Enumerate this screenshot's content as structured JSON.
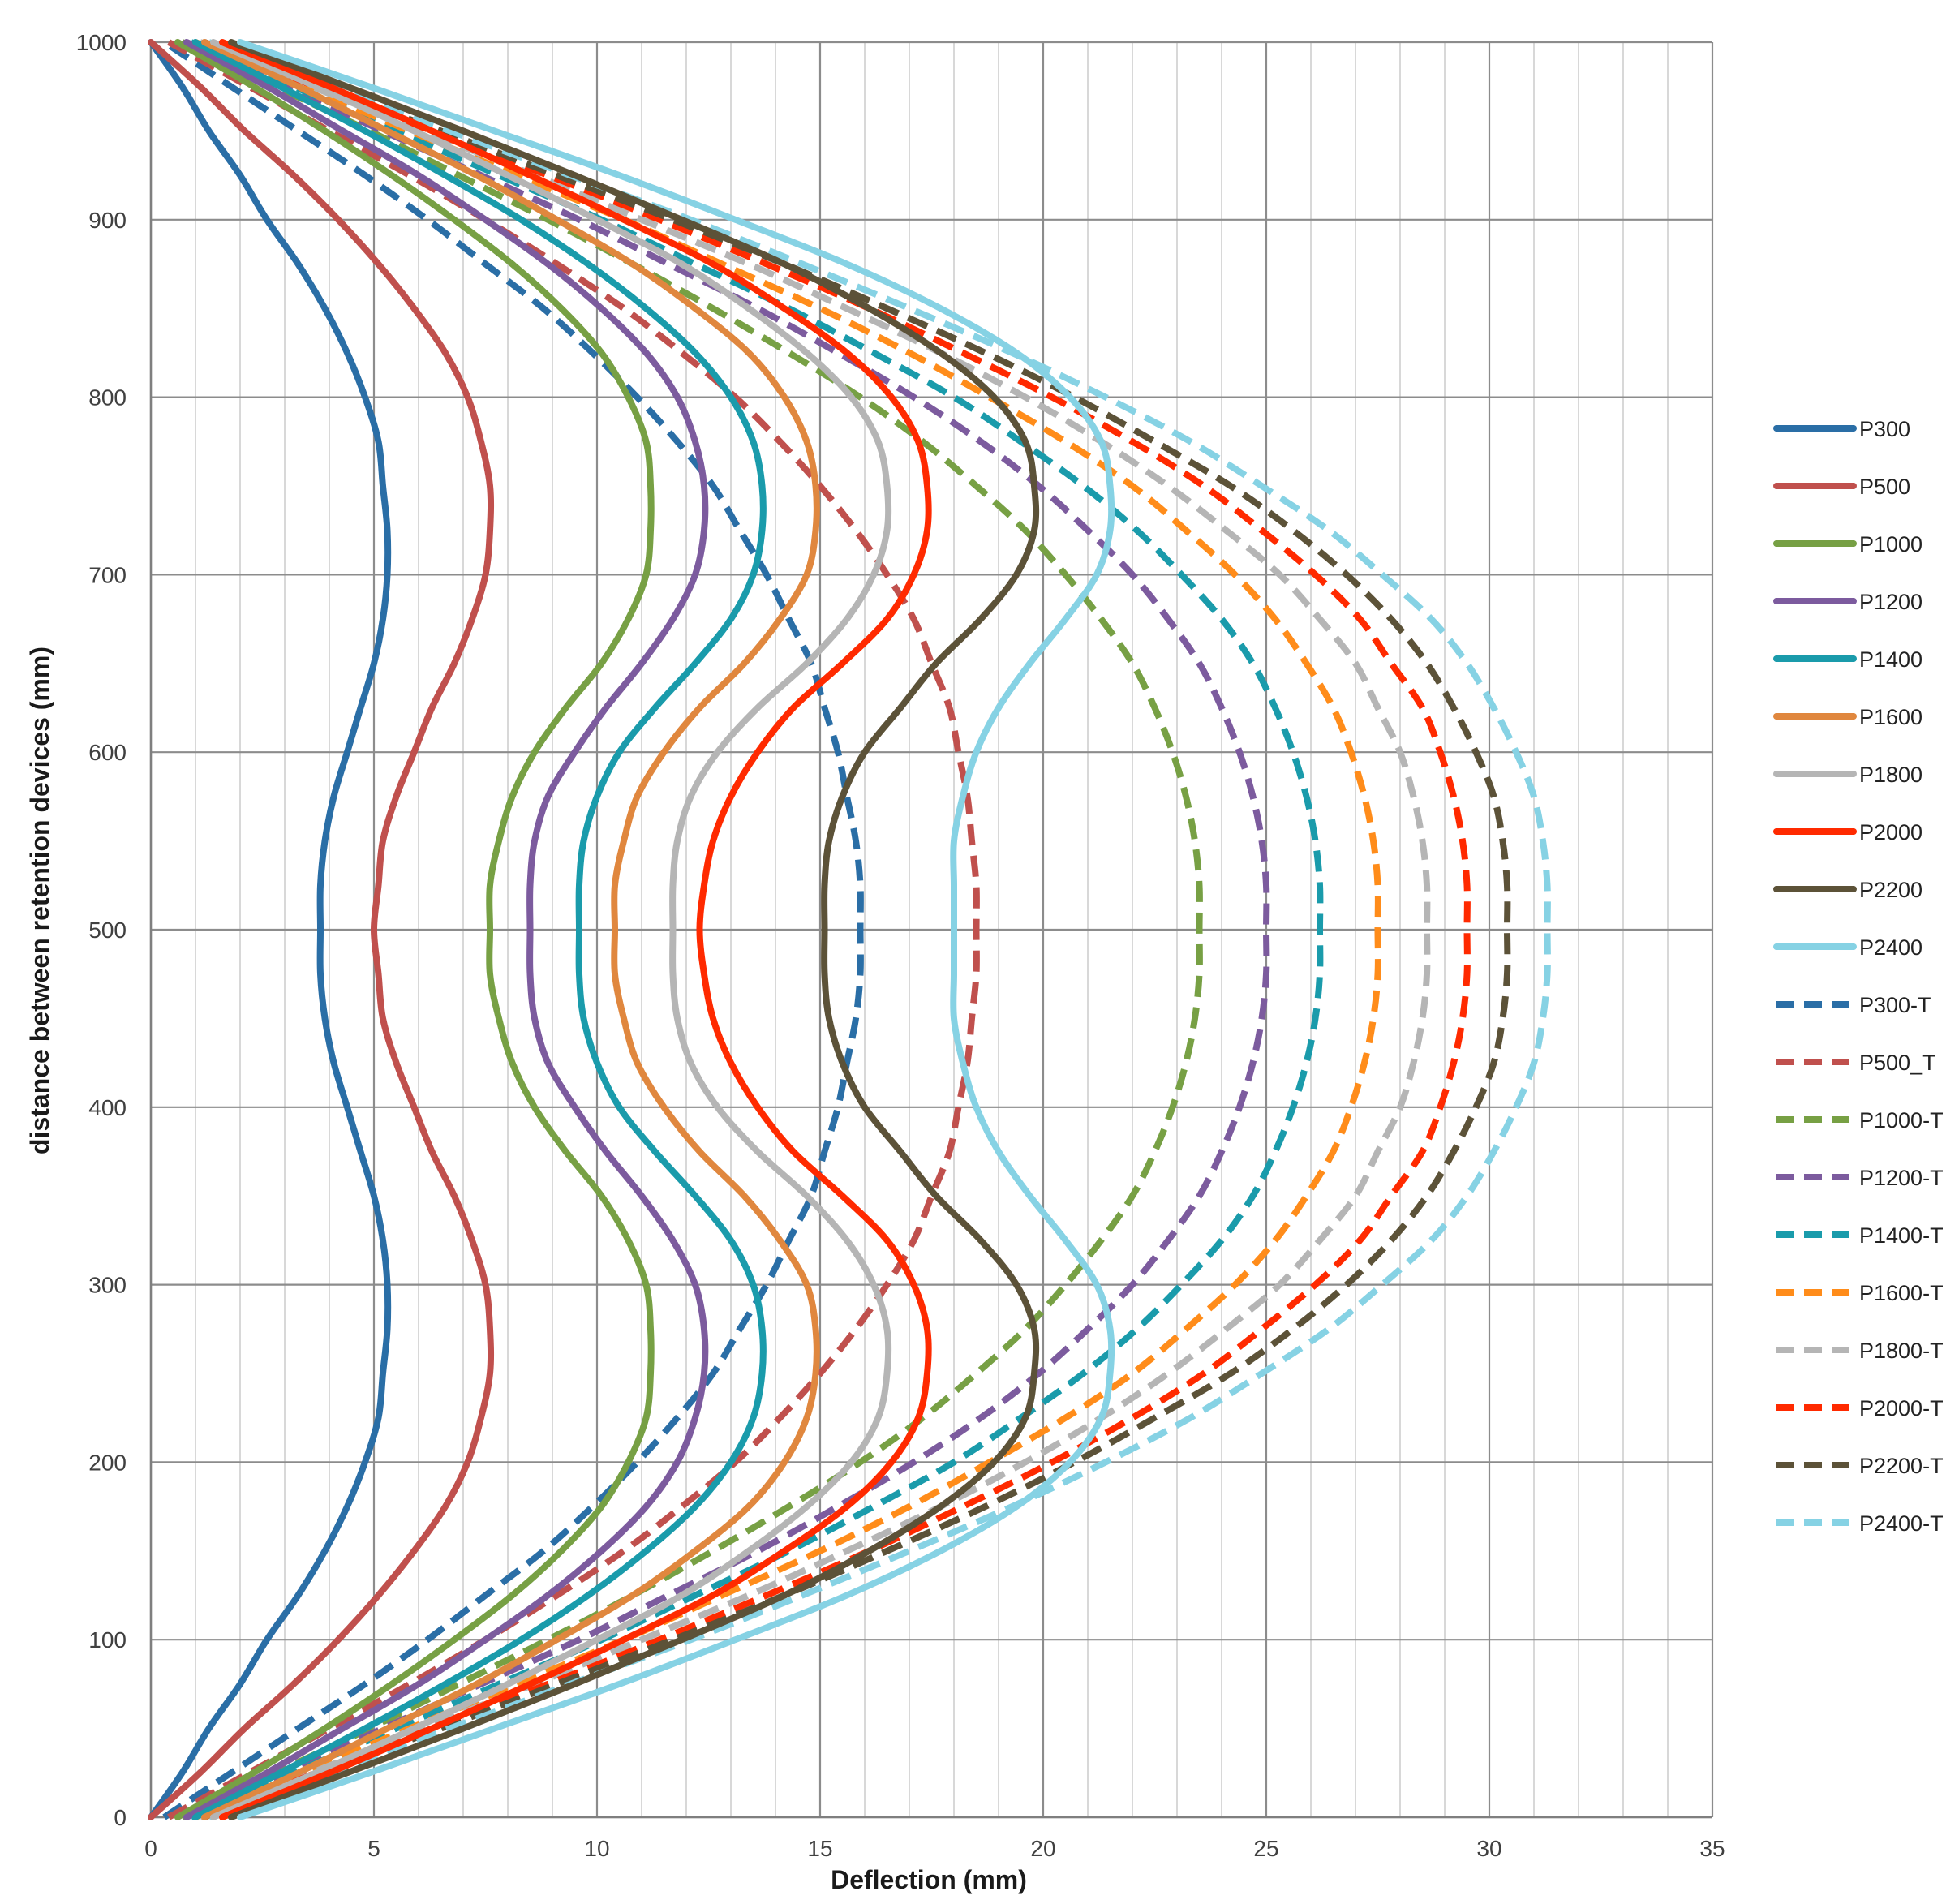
{
  "chart_data": {
    "type": "line",
    "xlabel": "Deflection (mm)",
    "ylabel": "distance between retention devices (mm)",
    "xlim": [
      0,
      35
    ],
    "ylim": [
      0,
      1000
    ],
    "x_ticks": [
      "0",
      "5",
      "10",
      "15",
      "20",
      "25",
      "30",
      "35"
    ],
    "y_ticks": [
      "0",
      "100",
      "200",
      "300",
      "400",
      "500",
      "600",
      "700",
      "800",
      "900",
      "1000"
    ],
    "grid": true,
    "legend_position": "right",
    "y": [
      0,
      25,
      50,
      75,
      100,
      125,
      150,
      175,
      200,
      225,
      250,
      275,
      300,
      325,
      350,
      375,
      400,
      425,
      450,
      475,
      500,
      525,
      550,
      575,
      600,
      625,
      650,
      675,
      700,
      725,
      750,
      775,
      800,
      825,
      850,
      875,
      900,
      925,
      950,
      975,
      1000
    ],
    "series": [
      {
        "name": "P300",
        "color": "#2a6ea6",
        "dash": false,
        "x": [
          0.0,
          0.7,
          1.3,
          2.0,
          2.6,
          3.3,
          3.9,
          4.4,
          4.8,
          5.1,
          5.2,
          5.3,
          5.3,
          5.2,
          5.0,
          4.7,
          4.4,
          4.1,
          3.9,
          3.8,
          3.8,
          3.8,
          3.9,
          4.1,
          4.4,
          4.7,
          5.0,
          5.2,
          5.3,
          5.3,
          5.2,
          5.1,
          4.8,
          4.4,
          3.9,
          3.3,
          2.6,
          2.0,
          1.3,
          0.7,
          0.0
        ]
      },
      {
        "name": "P500",
        "color": "#c0504d",
        "dash": false,
        "x": [
          0.0,
          1.1,
          2.1,
          3.2,
          4.2,
          5.1,
          5.9,
          6.6,
          7.1,
          7.4,
          7.6,
          7.6,
          7.5,
          7.2,
          6.8,
          6.3,
          5.9,
          5.5,
          5.2,
          5.1,
          5.0,
          5.1,
          5.2,
          5.5,
          5.9,
          6.3,
          6.8,
          7.2,
          7.5,
          7.6,
          7.6,
          7.4,
          7.1,
          6.6,
          5.9,
          5.1,
          4.2,
          3.2,
          2.1,
          1.1,
          0.0
        ]
      },
      {
        "name": "P1000",
        "color": "#77a044",
        "dash": false,
        "x": [
          0.6,
          2.3,
          3.9,
          5.4,
          6.8,
          8.1,
          9.2,
          10.1,
          10.7,
          11.1,
          11.2,
          11.2,
          11.1,
          10.7,
          10.1,
          9.3,
          8.6,
          8.1,
          7.8,
          7.6,
          7.6,
          7.6,
          7.8,
          8.1,
          8.6,
          9.3,
          10.1,
          10.7,
          11.1,
          11.2,
          11.2,
          11.1,
          10.7,
          10.1,
          9.2,
          8.1,
          6.8,
          5.4,
          3.9,
          2.3,
          0.6
        ]
      },
      {
        "name": "P1200",
        "color": "#7c5b9e",
        "dash": false,
        "x": [
          0.8,
          2.6,
          4.3,
          6.0,
          7.5,
          8.9,
          10.1,
          11.1,
          11.8,
          12.2,
          12.4,
          12.4,
          12.2,
          11.7,
          11.0,
          10.2,
          9.5,
          8.9,
          8.6,
          8.5,
          8.5,
          8.5,
          8.6,
          8.9,
          9.5,
          10.2,
          11.0,
          11.7,
          12.2,
          12.4,
          12.4,
          12.2,
          11.8,
          11.1,
          10.1,
          8.9,
          7.5,
          6.0,
          4.3,
          2.6,
          0.8
        ]
      },
      {
        "name": "P1400",
        "color": "#1a9bab",
        "dash": false,
        "x": [
          1.0,
          2.9,
          4.8,
          6.6,
          8.3,
          9.8,
          11.1,
          12.2,
          13.0,
          13.5,
          13.7,
          13.7,
          13.5,
          13.0,
          12.2,
          11.3,
          10.5,
          10.0,
          9.7,
          9.6,
          9.6,
          9.6,
          9.7,
          10.0,
          10.5,
          11.3,
          12.2,
          13.0,
          13.5,
          13.7,
          13.7,
          13.5,
          13.0,
          12.2,
          11.1,
          9.8,
          8.3,
          6.6,
          4.8,
          2.9,
          1.0
        ]
      },
      {
        "name": "P1600",
        "color": "#e0873e",
        "dash": false,
        "x": [
          1.2,
          3.3,
          5.3,
          7.3,
          9.1,
          10.8,
          12.2,
          13.4,
          14.2,
          14.7,
          14.9,
          14.9,
          14.7,
          14.1,
          13.3,
          12.3,
          11.5,
          10.9,
          10.6,
          10.4,
          10.4,
          10.4,
          10.6,
          10.9,
          11.5,
          12.3,
          13.3,
          14.1,
          14.7,
          14.9,
          14.9,
          14.7,
          14.2,
          13.4,
          12.2,
          10.8,
          9.1,
          7.3,
          5.3,
          3.3,
          1.2
        ]
      },
      {
        "name": "P1800",
        "color": "#b5b5b5",
        "dash": false,
        "x": [
          1.4,
          3.7,
          5.9,
          8.0,
          10.0,
          11.9,
          13.4,
          14.7,
          15.7,
          16.3,
          16.5,
          16.5,
          16.2,
          15.6,
          14.7,
          13.6,
          12.7,
          12.1,
          11.8,
          11.7,
          11.7,
          11.7,
          11.8,
          12.1,
          12.7,
          13.6,
          14.7,
          15.6,
          16.2,
          16.5,
          16.5,
          16.3,
          15.7,
          14.7,
          13.4,
          11.9,
          10.0,
          8.0,
          5.9,
          3.7,
          1.4
        ]
      },
      {
        "name": "P2000",
        "color": "#ff2a00",
        "dash": false,
        "x": [
          1.6,
          4.0,
          6.3,
          8.5,
          10.6,
          12.6,
          14.2,
          15.6,
          16.6,
          17.2,
          17.4,
          17.4,
          17.1,
          16.5,
          15.5,
          14.4,
          13.6,
          13.0,
          12.6,
          12.4,
          12.3,
          12.4,
          12.6,
          13.0,
          13.6,
          14.4,
          15.5,
          16.5,
          17.1,
          17.4,
          17.4,
          17.2,
          16.6,
          15.6,
          14.2,
          12.6,
          10.6,
          8.5,
          6.3,
          4.0,
          1.6
        ]
      },
      {
        "name": "P2200",
        "color": "#5c5238",
        "dash": false,
        "x": [
          1.8,
          4.4,
          7.0,
          9.5,
          11.9,
          14.2,
          16.1,
          17.7,
          18.9,
          19.6,
          19.8,
          19.8,
          19.4,
          18.6,
          17.6,
          16.8,
          16.0,
          15.5,
          15.2,
          15.1,
          15.1,
          15.1,
          15.2,
          15.5,
          16.0,
          16.8,
          17.6,
          18.6,
          19.4,
          19.8,
          19.8,
          19.6,
          18.9,
          17.7,
          16.1,
          14.2,
          11.9,
          9.5,
          7.0,
          4.4,
          1.8
        ]
      },
      {
        "name": "P2400",
        "color": "#86d2e4",
        "dash": false,
        "x": [
          2.0,
          4.9,
          7.7,
          10.5,
          13.1,
          15.6,
          17.7,
          19.4,
          20.6,
          21.3,
          21.5,
          21.5,
          21.2,
          20.5,
          19.7,
          19.0,
          18.5,
          18.2,
          18.0,
          18.0,
          18.0,
          18.0,
          18.0,
          18.2,
          18.5,
          19.0,
          19.7,
          20.5,
          21.2,
          21.5,
          21.5,
          21.3,
          20.6,
          19.4,
          17.7,
          15.6,
          13.1,
          10.5,
          7.7,
          4.9,
          2.0
        ]
      },
      {
        "name": "P300-T",
        "color": "#2a6ea6",
        "dash": true,
        "x": [
          0.3,
          1.8,
          3.3,
          4.8,
          6.2,
          7.5,
          8.8,
          9.9,
          10.9,
          11.8,
          12.6,
          13.2,
          13.8,
          14.3,
          14.8,
          15.1,
          15.4,
          15.6,
          15.8,
          15.9,
          15.9,
          15.9,
          15.8,
          15.6,
          15.4,
          15.1,
          14.8,
          14.3,
          13.8,
          13.2,
          12.6,
          11.8,
          10.9,
          9.9,
          8.8,
          7.5,
          6.2,
          4.8,
          3.3,
          1.8,
          0.3
        ]
      },
      {
        "name": "P500_T",
        "color": "#c0504d",
        "dash": true,
        "x": [
          0.4,
          2.2,
          4.0,
          5.8,
          7.5,
          9.1,
          10.6,
          11.9,
          13.1,
          14.1,
          15.0,
          15.8,
          16.5,
          17.1,
          17.5,
          17.9,
          18.1,
          18.3,
          18.4,
          18.5,
          18.5,
          18.5,
          18.4,
          18.3,
          18.1,
          17.9,
          17.5,
          17.1,
          16.5,
          15.8,
          15.0,
          14.1,
          13.1,
          11.9,
          10.6,
          9.1,
          7.5,
          5.8,
          4.0,
          2.2,
          0.4
        ]
      },
      {
        "name": "P1000-T",
        "color": "#77a044",
        "dash": true,
        "x": [
          0.7,
          2.8,
          4.9,
          6.9,
          8.9,
          10.8,
          12.6,
          14.3,
          15.9,
          17.3,
          18.5,
          19.6,
          20.5,
          21.3,
          22.0,
          22.5,
          22.9,
          23.2,
          23.4,
          23.5,
          23.5,
          23.5,
          23.4,
          23.2,
          22.9,
          22.5,
          22.0,
          21.3,
          20.5,
          19.6,
          18.5,
          17.3,
          15.9,
          14.3,
          12.6,
          10.8,
          8.9,
          6.9,
          4.9,
          2.8,
          0.7
        ]
      },
      {
        "name": "P1200-T",
        "color": "#7c5b9e",
        "dash": true,
        "x": [
          0.8,
          3.0,
          5.2,
          7.4,
          9.6,
          11.6,
          13.6,
          15.4,
          17.1,
          18.6,
          19.9,
          21.0,
          22.0,
          22.8,
          23.5,
          24.0,
          24.4,
          24.7,
          24.9,
          25.0,
          25.0,
          25.0,
          24.9,
          24.7,
          24.4,
          24.0,
          23.5,
          22.8,
          22.0,
          21.0,
          19.9,
          18.6,
          17.1,
          15.4,
          13.6,
          11.6,
          9.6,
          7.4,
          5.2,
          3.0,
          0.8
        ]
      },
      {
        "name": "P1400-T",
        "color": "#1a9bab",
        "dash": true,
        "x": [
          0.9,
          3.2,
          5.5,
          7.8,
          10.1,
          12.2,
          14.3,
          16.2,
          18.0,
          19.5,
          20.9,
          22.1,
          23.1,
          24.0,
          24.7,
          25.2,
          25.6,
          25.9,
          26.1,
          26.2,
          26.2,
          26.2,
          26.1,
          25.9,
          25.6,
          25.2,
          24.7,
          24.0,
          23.1,
          22.1,
          20.9,
          19.5,
          18.0,
          16.2,
          14.3,
          12.2,
          10.1,
          7.8,
          5.5,
          3.2,
          0.9
        ]
      },
      {
        "name": "P1600-T",
        "color": "#ff8c1a",
        "dash": true,
        "x": [
          1.0,
          3.4,
          5.8,
          8.2,
          10.6,
          12.8,
          15.0,
          17.0,
          18.8,
          20.5,
          22.0,
          23.2,
          24.3,
          25.2,
          25.9,
          26.5,
          26.9,
          27.2,
          27.4,
          27.5,
          27.5,
          27.5,
          27.4,
          27.2,
          26.9,
          26.5,
          25.9,
          25.2,
          24.3,
          23.2,
          22.0,
          20.5,
          18.8,
          17.0,
          15.0,
          12.8,
          10.6,
          8.2,
          5.8,
          3.4,
          1.0
        ]
      },
      {
        "name": "P1800-T",
        "color": "#b5b5b5",
        "dash": true,
        "x": [
          1.1,
          3.6,
          6.1,
          8.6,
          11.0,
          13.4,
          15.6,
          17.7,
          19.6,
          21.3,
          22.8,
          24.1,
          25.3,
          26.2,
          27.0,
          27.5,
          28.0,
          28.3,
          28.5,
          28.6,
          28.6,
          28.6,
          28.5,
          28.3,
          28.0,
          27.5,
          27.0,
          26.2,
          25.3,
          24.1,
          22.8,
          21.3,
          19.6,
          17.7,
          15.6,
          13.4,
          11.0,
          8.6,
          6.1,
          3.6,
          1.1
        ]
      },
      {
        "name": "P2000-T",
        "color": "#ff2a00",
        "dash": true,
        "x": [
          1.2,
          3.7,
          6.3,
          8.9,
          11.4,
          13.8,
          16.1,
          18.2,
          20.2,
          22.0,
          23.6,
          24.9,
          26.1,
          27.1,
          27.8,
          28.5,
          28.9,
          29.2,
          29.4,
          29.5,
          29.5,
          29.5,
          29.4,
          29.2,
          28.9,
          28.5,
          27.8,
          27.1,
          26.1,
          24.9,
          23.6,
          22.0,
          20.2,
          18.2,
          16.1,
          13.8,
          11.4,
          8.9,
          6.3,
          3.7,
          1.2
        ]
      },
      {
        "name": "P2200-T",
        "color": "#5c5238",
        "dash": true,
        "x": [
          1.2,
          3.8,
          6.5,
          9.1,
          11.7,
          14.2,
          16.5,
          18.7,
          20.7,
          22.5,
          24.2,
          25.6,
          26.8,
          27.8,
          28.6,
          29.2,
          29.7,
          30.1,
          30.3,
          30.4,
          30.4,
          30.4,
          30.3,
          30.1,
          29.7,
          29.2,
          28.6,
          27.8,
          26.8,
          25.6,
          24.2,
          22.5,
          20.7,
          18.7,
          16.5,
          14.2,
          11.7,
          9.1,
          6.5,
          3.8,
          1.2
        ]
      },
      {
        "name": "P2400-T",
        "color": "#86d2e4",
        "dash": true,
        "x": [
          1.3,
          4.0,
          6.7,
          9.4,
          12.1,
          14.6,
          17.0,
          19.3,
          21.4,
          23.3,
          24.9,
          26.4,
          27.6,
          28.7,
          29.5,
          30.1,
          30.6,
          31.0,
          31.2,
          31.3,
          31.3,
          31.3,
          31.2,
          31.0,
          30.6,
          30.1,
          29.5,
          28.7,
          27.6,
          26.4,
          24.9,
          23.3,
          21.4,
          19.3,
          17.0,
          14.6,
          12.1,
          9.4,
          6.7,
          4.0,
          1.3
        ]
      }
    ]
  }
}
